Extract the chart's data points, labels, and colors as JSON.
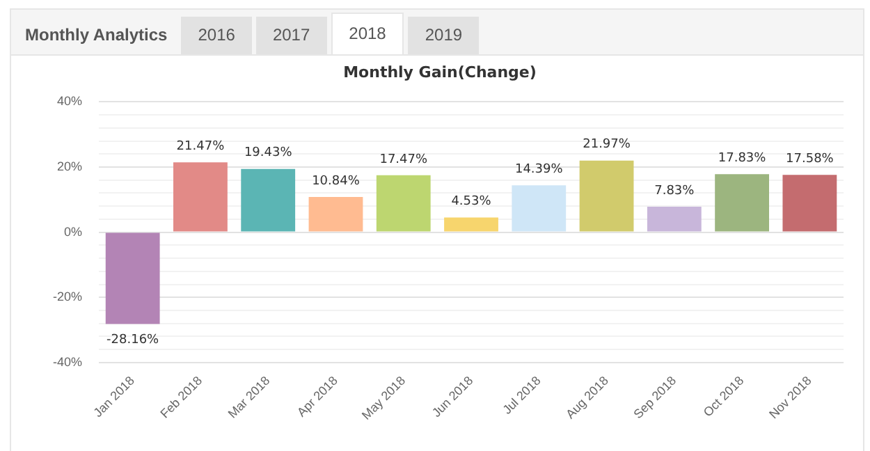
{
  "chart_data": {
    "type": "bar",
    "title": "Monthly Gain(Change)",
    "annotations": [
      "Monthly Analytics",
      "2016",
      "2017",
      "2018",
      "2019"
    ],
    "categories": [
      "Jan 2018",
      "Feb 2018",
      "Mar 2018",
      "Apr 2018",
      "May 2018",
      "Jun 2018",
      "Jul 2018",
      "Aug 2018",
      "Sep 2018",
      "Oct 2018",
      "Nov 2018"
    ],
    "values": [
      -28.16,
      21.47,
      19.43,
      10.84,
      17.47,
      4.53,
      14.39,
      21.97,
      7.83,
      17.83,
      17.58
    ],
    "value_labels": [
      "-28.16%",
      "21.47%",
      "19.43%",
      "10.84%",
      "17.47%",
      "4.53%",
      "14.39%",
      "21.97%",
      "7.83%",
      "17.83%",
      "17.58%"
    ],
    "colors": [
      "#b384b5",
      "#e28a87",
      "#5bb5b4",
      "#ffbb91",
      "#bdd670",
      "#f7d56d",
      "#cfe6f7",
      "#d1cb6c",
      "#c8b6da",
      "#9cb57f",
      "#c46c6f"
    ],
    "ylim": [
      -40,
      40
    ],
    "yticks": [
      {
        "value": -40,
        "label": "-40%"
      },
      {
        "value": -36,
        "label": null
      },
      {
        "value": -32,
        "label": null
      },
      {
        "value": -28,
        "label": null
      },
      {
        "value": -24,
        "label": null
      },
      {
        "value": -20,
        "label": "-20%"
      },
      {
        "value": -16,
        "label": null
      },
      {
        "value": -12,
        "label": null
      },
      {
        "value": -8,
        "label": null
      },
      {
        "value": -4,
        "label": null
      },
      {
        "value": 0,
        "label": "0%"
      },
      {
        "value": 4,
        "label": null
      },
      {
        "value": 8,
        "label": null
      },
      {
        "value": 12,
        "label": null
      },
      {
        "value": 16,
        "label": null
      },
      {
        "value": 20,
        "label": "20%"
      },
      {
        "value": 24,
        "label": null
      },
      {
        "value": 28,
        "label": null
      },
      {
        "value": 32,
        "label": null
      },
      {
        "value": 36,
        "label": null
      },
      {
        "value": 40,
        "label": "40%"
      }
    ],
    "grid": "y",
    "legend": false
  }
}
